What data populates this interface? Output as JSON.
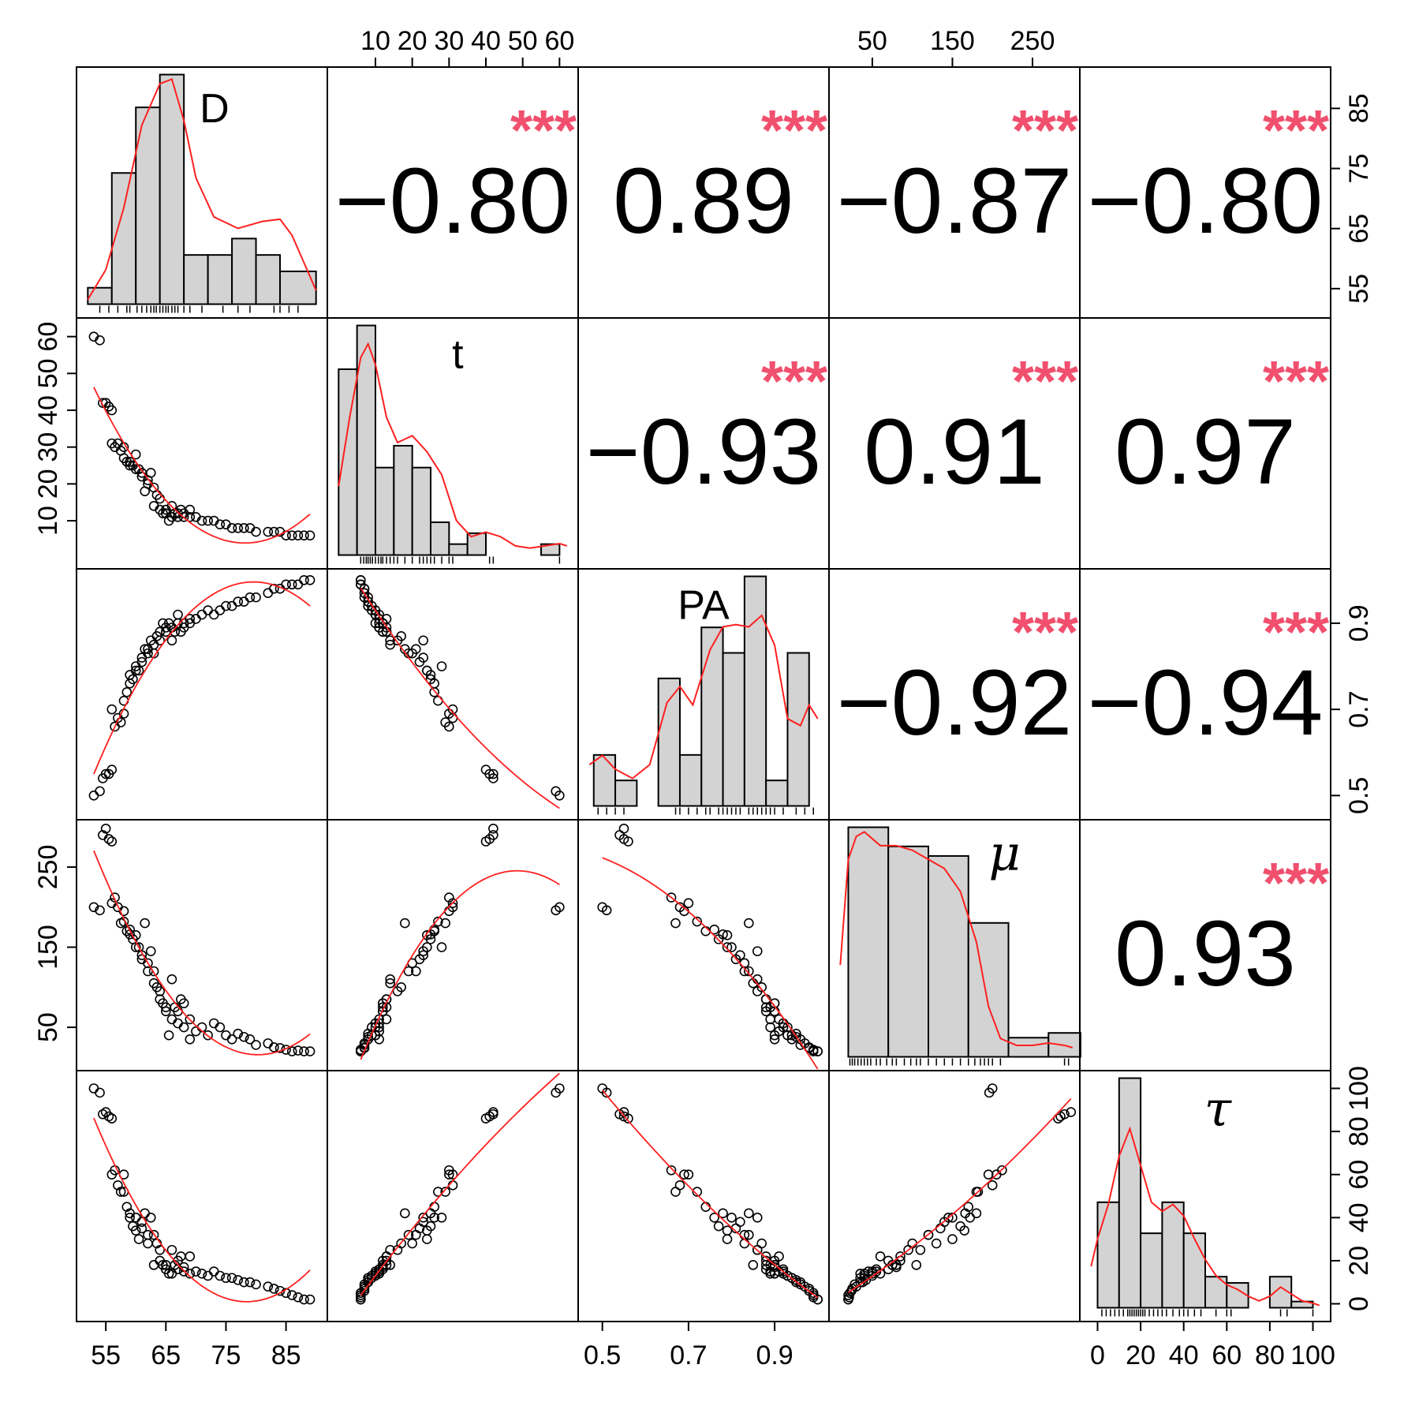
{
  "chart_data": {
    "type": "scatter-matrix",
    "title": "",
    "variables": [
      {
        "name": "D",
        "range": [
          52,
          90
        ],
        "ticks": [
          55,
          65,
          75,
          85
        ],
        "hist": {
          "breaks": [
            52,
            56,
            60,
            64,
            68,
            72,
            76,
            80,
            84,
            90
          ],
          "counts": [
            1,
            8,
            12,
            14,
            3,
            3,
            4,
            3,
            2
          ]
        },
        "density": [
          [
            52,
            0.02
          ],
          [
            55,
            0.15
          ],
          [
            58,
            0.42
          ],
          [
            61,
            0.78
          ],
          [
            64,
            0.96
          ],
          [
            66,
            0.98
          ],
          [
            68,
            0.8
          ],
          [
            70,
            0.55
          ],
          [
            73,
            0.38
          ],
          [
            77,
            0.33
          ],
          [
            81,
            0.36
          ],
          [
            84,
            0.37
          ],
          [
            86,
            0.3
          ],
          [
            88,
            0.18
          ],
          [
            90,
            0.06
          ]
        ],
        "rug": [
          54,
          55.5,
          57,
          58.5,
          59,
          60.2,
          61,
          61.8,
          62.5,
          63,
          63.4,
          64,
          64.5,
          65,
          65.4,
          66,
          66.5,
          67,
          68,
          69,
          71,
          74.5,
          77,
          79,
          83,
          84,
          85.5,
          87
        ]
      },
      {
        "name": "t",
        "range": [
          0,
          62
        ],
        "ticks": [
          10,
          20,
          30,
          40,
          50,
          60
        ],
        "hist": {
          "breaks": [
            0,
            5,
            10,
            15,
            20,
            25,
            30,
            35,
            40,
            45,
            50,
            55,
            60
          ],
          "counts": [
            17,
            21,
            8,
            10,
            8,
            3,
            1,
            2,
            0,
            0,
            0,
            1
          ]
        },
        "density": [
          [
            0,
            0.3
          ],
          [
            3,
            0.6
          ],
          [
            6,
            0.86
          ],
          [
            8,
            0.92
          ],
          [
            10,
            0.83
          ],
          [
            13,
            0.6
          ],
          [
            16,
            0.49
          ],
          [
            20,
            0.52
          ],
          [
            24,
            0.45
          ],
          [
            28,
            0.35
          ],
          [
            32,
            0.15
          ],
          [
            36,
            0.08
          ],
          [
            40,
            0.1
          ],
          [
            44,
            0.08
          ],
          [
            48,
            0.04
          ],
          [
            52,
            0.03
          ],
          [
            56,
            0.04
          ],
          [
            60,
            0.05
          ],
          [
            62,
            0.04
          ]
        ],
        "rug": [
          6,
          6.8,
          7.5,
          8,
          8.6,
          9.2,
          10,
          10.8,
          11.5,
          12,
          13,
          14,
          15,
          16,
          18,
          20,
          22,
          23,
          24,
          25,
          26,
          28,
          30,
          31,
          41,
          42,
          60
        ]
      },
      {
        "name": "PA",
        "range": [
          0.47,
          1.0
        ],
        "ticks": [
          0.5,
          0.7,
          0.9
        ],
        "hist": {
          "breaks": [
            0.48,
            0.53,
            0.58,
            0.63,
            0.68,
            0.73,
            0.78,
            0.83,
            0.88,
            0.93,
            0.98
          ],
          "counts": [
            2,
            1,
            0,
            5,
            2,
            7,
            6,
            9,
            1,
            6
          ]
        },
        "density": [
          [
            0.47,
            0.18
          ],
          [
            0.5,
            0.22
          ],
          [
            0.53,
            0.16
          ],
          [
            0.57,
            0.12
          ],
          [
            0.61,
            0.18
          ],
          [
            0.65,
            0.45
          ],
          [
            0.68,
            0.52
          ],
          [
            0.71,
            0.44
          ],
          [
            0.75,
            0.68
          ],
          [
            0.78,
            0.78
          ],
          [
            0.81,
            0.79
          ],
          [
            0.84,
            0.78
          ],
          [
            0.87,
            0.83
          ],
          [
            0.9,
            0.7
          ],
          [
            0.93,
            0.38
          ],
          [
            0.96,
            0.35
          ],
          [
            0.98,
            0.44
          ],
          [
            1.0,
            0.38
          ]
        ],
        "rug": [
          0.49,
          0.51,
          0.53,
          0.55,
          0.67,
          0.68,
          0.7,
          0.72,
          0.74,
          0.75,
          0.77,
          0.78,
          0.79,
          0.8,
          0.81,
          0.82,
          0.84,
          0.85,
          0.86,
          0.87,
          0.88,
          0.89,
          0.9,
          0.92,
          0.95,
          0.97,
          0.99
        ]
      },
      {
        "name": "μ",
        "range": [
          10,
          295
        ],
        "ticks": [
          50,
          150,
          250
        ],
        "hist": {
          "breaks": [
            20,
            70,
            120,
            170,
            220,
            270,
            310
          ],
          "counts": [
            48,
            44,
            42,
            28,
            4,
            5
          ]
        },
        "density": [
          [
            10,
            0.4
          ],
          [
            20,
            0.86
          ],
          [
            30,
            0.96
          ],
          [
            40,
            0.98
          ],
          [
            60,
            0.92
          ],
          [
            80,
            0.92
          ],
          [
            100,
            0.9
          ],
          [
            120,
            0.86
          ],
          [
            140,
            0.82
          ],
          [
            160,
            0.72
          ],
          [
            180,
            0.5
          ],
          [
            195,
            0.22
          ],
          [
            210,
            0.08
          ],
          [
            230,
            0.05
          ],
          [
            250,
            0.05
          ],
          [
            270,
            0.06
          ],
          [
            290,
            0.05
          ],
          [
            300,
            0.04
          ]
        ],
        "rug": [
          22,
          25,
          28,
          32,
          36,
          40,
          44,
          48,
          55,
          60,
          68,
          75,
          80,
          90,
          98,
          105,
          110,
          120,
          130,
          140,
          150,
          160,
          170,
          178,
          185,
          190,
          195,
          200,
          210,
          290,
          295
        ]
      },
      {
        "name": "τ",
        "range": [
          -3,
          103
        ],
        "ticks": [
          0,
          20,
          40,
          60,
          80,
          100
        ],
        "hist": {
          "breaks": [
            0,
            10,
            20,
            30,
            40,
            50,
            60,
            70,
            80,
            90,
            100
          ],
          "counts": [
            17,
            37,
            12,
            17,
            12,
            5,
            4,
            0,
            5,
            1
          ]
        },
        "density": [
          [
            -3,
            0.18
          ],
          [
            0,
            0.3
          ],
          [
            5,
            0.45
          ],
          [
            10,
            0.66
          ],
          [
            15,
            0.78
          ],
          [
            20,
            0.62
          ],
          [
            25,
            0.46
          ],
          [
            30,
            0.42
          ],
          [
            35,
            0.45
          ],
          [
            40,
            0.4
          ],
          [
            45,
            0.3
          ],
          [
            50,
            0.21
          ],
          [
            55,
            0.14
          ],
          [
            60,
            0.1
          ],
          [
            65,
            0.08
          ],
          [
            70,
            0.05
          ],
          [
            75,
            0.03
          ],
          [
            80,
            0.05
          ],
          [
            85,
            0.09
          ],
          [
            90,
            0.06
          ],
          [
            95,
            0.03
          ],
          [
            100,
            0.02
          ],
          [
            103,
            0.01
          ]
        ],
        "rug": [
          2,
          4,
          6,
          8,
          10,
          12,
          14,
          15,
          16,
          17,
          18,
          19,
          20,
          21,
          22,
          24,
          26,
          28,
          30,
          32,
          35,
          38,
          40,
          42,
          45,
          48,
          55,
          60,
          62,
          85,
          88,
          100
        ]
      }
    ],
    "correlations": [
      {
        "row": 0,
        "col": 1,
        "value": "−0.80",
        "stars": "***"
      },
      {
        "row": 0,
        "col": 2,
        "value": "0.89",
        "stars": "***"
      },
      {
        "row": 0,
        "col": 3,
        "value": "−0.87",
        "stars": "***"
      },
      {
        "row": 0,
        "col": 4,
        "value": "−0.80",
        "stars": "***"
      },
      {
        "row": 1,
        "col": 2,
        "value": "−0.93",
        "stars": "***"
      },
      {
        "row": 1,
        "col": 3,
        "value": "0.91",
        "stars": "***"
      },
      {
        "row": 1,
        "col": 4,
        "value": "0.97",
        "stars": "***"
      },
      {
        "row": 2,
        "col": 3,
        "value": "−0.92",
        "stars": "***"
      },
      {
        "row": 2,
        "col": 4,
        "value": "−0.94",
        "stars": "***"
      },
      {
        "row": 3,
        "col": 4,
        "value": "0.93",
        "stars": "***"
      }
    ],
    "observations": {
      "D": [
        53,
        54,
        54.5,
        55,
        55.5,
        56,
        56,
        56.5,
        57,
        57.5,
        58,
        58,
        58.5,
        59,
        59,
        59.5,
        60,
        60,
        60.5,
        61,
        61,
        61.5,
        62,
        62,
        62.5,
        63,
        63,
        63.5,
        64,
        64,
        64.5,
        65,
        65,
        65.5,
        66,
        66,
        66.5,
        67,
        67,
        67.5,
        68,
        68,
        69,
        69,
        70,
        71,
        72,
        73,
        74,
        75,
        76,
        77,
        78,
        79,
        80,
        82,
        83,
        84,
        85,
        86,
        87,
        88,
        89
      ],
      "t": [
        60,
        59,
        42,
        42,
        41,
        40,
        31,
        30,
        31,
        29,
        30,
        27,
        26,
        26,
        25,
        25,
        28,
        24,
        24,
        23,
        22,
        18,
        20,
        21,
        23,
        14,
        19,
        17,
        16,
        13,
        12,
        13,
        12,
        10,
        11,
        14,
        12,
        12,
        11,
        13,
        11,
        12,
        13,
        11,
        11,
        10,
        10,
        10,
        9,
        9,
        8,
        8,
        8,
        8,
        7,
        7,
        7,
        7,
        6,
        6,
        6,
        6,
        6
      ],
      "PA": [
        0.5,
        0.51,
        0.54,
        0.55,
        0.55,
        0.56,
        0.7,
        0.66,
        0.68,
        0.67,
        0.69,
        0.72,
        0.74,
        0.76,
        0.78,
        0.77,
        0.8,
        0.79,
        0.79,
        0.82,
        0.81,
        0.84,
        0.83,
        0.84,
        0.86,
        0.85,
        0.83,
        0.87,
        0.86,
        0.88,
        0.9,
        0.89,
        0.88,
        0.9,
        0.89,
        0.86,
        0.88,
        0.9,
        0.92,
        0.88,
        0.89,
        0.9,
        0.91,
        0.9,
        0.91,
        0.92,
        0.93,
        0.92,
        0.93,
        0.94,
        0.94,
        0.95,
        0.95,
        0.96,
        0.96,
        0.97,
        0.98,
        0.98,
        0.99,
        0.99,
        0.99,
        1.0,
        1.0
      ],
      "mu": [
        200,
        196,
        290,
        298,
        285,
        282,
        205,
        212,
        200,
        180,
        195,
        182,
        170,
        172,
        166,
        160,
        150,
        165,
        150,
        140,
        135,
        180,
        130,
        120,
        145,
        105,
        120,
        100,
        95,
        85,
        80,
        75,
        70,
        40,
        60,
        110,
        75,
        70,
        55,
        85,
        50,
        80,
        60,
        35,
        45,
        50,
        40,
        55,
        50,
        40,
        35,
        42,
        38,
        35,
        28,
        30,
        25,
        24,
        22,
        20,
        21,
        20,
        20
      ],
      "tau": [
        100,
        98,
        88,
        89,
        87,
        86,
        60,
        62,
        55,
        52,
        60,
        52,
        45,
        40,
        42,
        36,
        40,
        34,
        30,
        38,
        35,
        42,
        28,
        32,
        40,
        18,
        32,
        28,
        25,
        20,
        18,
        18,
        16,
        14,
        14,
        25,
        18,
        20,
        16,
        22,
        15,
        17,
        22,
        14,
        15,
        14,
        13,
        15,
        13,
        12,
        12,
        11,
        10,
        10,
        9,
        8,
        7,
        6,
        5,
        4,
        3,
        2,
        2
      ]
    }
  }
}
